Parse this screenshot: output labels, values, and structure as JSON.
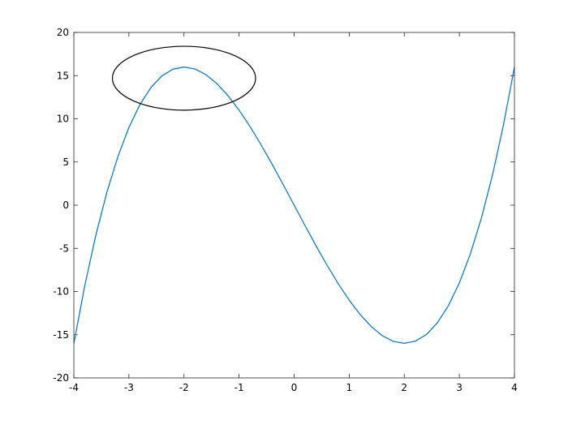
{
  "chart_data": {
    "type": "line",
    "title": "",
    "xlabel": "",
    "ylabel": "",
    "xlim": [
      -4,
      4
    ],
    "ylim": [
      -20,
      20
    ],
    "xticks": [
      "-4",
      "-3",
      "-2",
      "-1",
      "0",
      "1",
      "2",
      "3",
      "4"
    ],
    "yticks": [
      "-20",
      "-15",
      "-10",
      "-5",
      "0",
      "5",
      "10",
      "15",
      "20"
    ],
    "grid": false,
    "series": [
      {
        "color": "#0072BD",
        "x": [
          -4,
          -3.8,
          -3.6,
          -3.4,
          -3.2,
          -3,
          -2.8,
          -2.6,
          -2.4,
          -2.2,
          -2,
          -1.8,
          -1.6,
          -1.4,
          -1.2,
          -1,
          -0.8,
          -0.6,
          -0.4,
          -0.2,
          0,
          0.2,
          0.4,
          0.6,
          0.8,
          1,
          1.2,
          1.4,
          1.6,
          1.8,
          2,
          2.2,
          2.4,
          2.6,
          2.8,
          3,
          3.2,
          3.4,
          3.6,
          3.8,
          4
        ],
        "y": [
          -16,
          -9.272,
          -3.456,
          1.496,
          5.632,
          9,
          11.648,
          13.624,
          14.976,
          15.752,
          16,
          15.768,
          15.104,
          14.056,
          12.672,
          11,
          9.088,
          6.984,
          4.736,
          2.392,
          0,
          -2.392,
          -4.736,
          -6.984,
          -9.088,
          -11,
          -12.672,
          -14.056,
          -15.104,
          -15.768,
          -16,
          -15.752,
          -14.976,
          -13.624,
          -11.648,
          -9,
          -5.632,
          -1.496,
          3.456,
          9.272,
          16
        ]
      }
    ],
    "annotations": [
      {
        "type": "ellipse",
        "center": [
          -2,
          14.7
        ],
        "radii": [
          1.3,
          3.7
        ],
        "color": "#000000"
      }
    ]
  }
}
